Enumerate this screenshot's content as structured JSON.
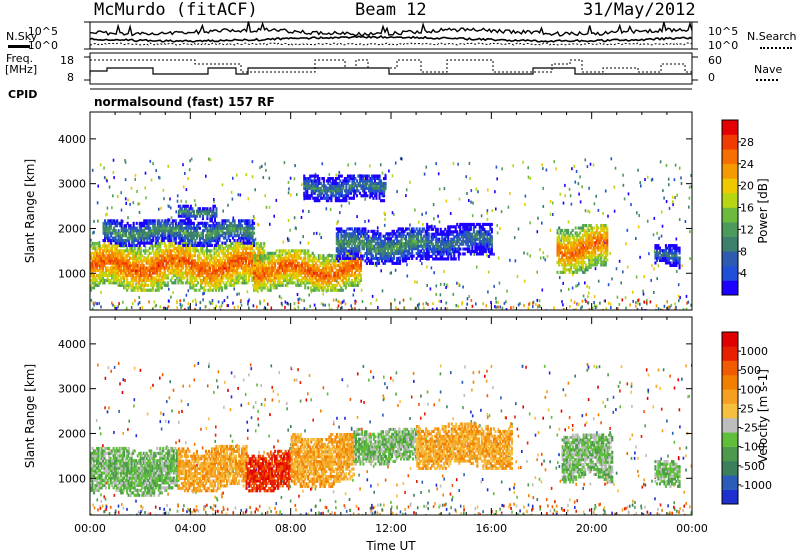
{
  "header": {
    "station": "McMurdo (fitACF)",
    "beam": "Beam 12",
    "date": "31/May/2012"
  },
  "status_panel": {
    "left_label_1": "N.Sky",
    "left_label_2": "Freq.",
    "left_label_3": "[MHz]",
    "left_label_4": "CPID",
    "nsky_ticks": [
      "10^5",
      "10^0"
    ],
    "freq_ticks": [
      "18",
      "8"
    ],
    "right_label_1": "N.Search",
    "right_label_2": "Nave",
    "nsearch_ticks": [
      "10^5",
      "10^0"
    ],
    "nave_ticks": [
      "60",
      "0"
    ],
    "cpid_text": "normalsound (fast) 157 RF"
  },
  "chart_data": [
    {
      "type": "heatmap",
      "ylabel": "Slant Range [km]",
      "ylim": [
        180,
        4600
      ],
      "yticks": [
        "1000",
        "2000",
        "3000",
        "4000"
      ],
      "xlim": [
        "00:00",
        "24:00"
      ],
      "colorbar": {
        "label": "Power [dB]",
        "ticks": [
          "28",
          "24",
          "20",
          "16",
          "12",
          "8",
          "4"
        ],
        "colors": [
          "#1d00ff",
          "#2050d8",
          "#2d5bb0",
          "#3b7f6c",
          "#4c9a5c",
          "#6cbb3e",
          "#b6d614",
          "#eec800",
          "#f59a00",
          "#f57000",
          "#f03c00",
          "#e40000"
        ],
        "range": [
          0,
          32
        ]
      },
      "regions": [
        {
          "t0": 0.0,
          "t1": 6.9,
          "r0": 600,
          "r1": 1700,
          "value": 27
        },
        {
          "t0": 0.5,
          "t1": 6.5,
          "r0": 1600,
          "r1": 2200,
          "value": 12
        },
        {
          "t0": 6.5,
          "t1": 10.8,
          "r0": 600,
          "r1": 1500,
          "value": 27
        },
        {
          "t0": 9.8,
          "t1": 13.5,
          "r0": 1200,
          "r1": 2000,
          "value": 12
        },
        {
          "t0": 13.4,
          "t1": 16.0,
          "r0": 1300,
          "r1": 2100,
          "value": 9
        },
        {
          "t0": 18.6,
          "t1": 20.6,
          "r0": 1000,
          "r1": 2100,
          "value": 26
        },
        {
          "t0": 22.5,
          "t1": 23.5,
          "r0": 1100,
          "r1": 1600,
          "value": 9
        },
        {
          "t0": 3.5,
          "t1": 5.0,
          "r0": 2200,
          "r1": 2500,
          "value": 12
        },
        {
          "t0": 8.5,
          "t1": 11.8,
          "r0": 2600,
          "r1": 3200,
          "value": 10
        }
      ]
    },
    {
      "type": "heatmap",
      "ylabel": "Slant Range [km]",
      "xlabel": "Time UT",
      "ylim": [
        180,
        4600
      ],
      "yticks": [
        "1000",
        "2000",
        "3000",
        "4000"
      ],
      "xlim": [
        "00:00",
        "24:00"
      ],
      "xticks": [
        "00:00",
        "04:00",
        "08:00",
        "12:00",
        "16:00",
        "20:00",
        "00:00"
      ],
      "colorbar": {
        "label": "Velocity [m s-1]",
        "ticks": [
          "1000",
          "500",
          "100",
          "25",
          "-25",
          "-100",
          "-500",
          "-1000"
        ],
        "colors": [
          "#1d2fd0",
          "#2a5db8",
          "#3b7f5c",
          "#4d9a4c",
          "#5fbf3a",
          "#bdbdbd",
          "#f5c040",
          "#f5a020",
          "#f28000",
          "#f05a00",
          "#e82000",
          "#e00000"
        ],
        "range": [
          -1250,
          1250
        ]
      },
      "regions": [
        {
          "t0": 0.0,
          "t1": 3.5,
          "r0": 600,
          "r1": 1700,
          "value": -300
        },
        {
          "t0": 3.5,
          "t1": 6.2,
          "r0": 700,
          "r1": 1700,
          "value": 300
        },
        {
          "t0": 6.2,
          "t1": 8.0,
          "r0": 700,
          "r1": 1600,
          "value": 900
        },
        {
          "t0": 8.0,
          "t1": 10.5,
          "r0": 800,
          "r1": 2000,
          "value": 300
        },
        {
          "t0": 10.5,
          "t1": 13.0,
          "r0": 1300,
          "r1": 2100,
          "value": -300
        },
        {
          "t0": 13.0,
          "t1": 16.8,
          "r0": 1200,
          "r1": 2200,
          "value": 300
        },
        {
          "t0": 18.8,
          "t1": 20.8,
          "r0": 900,
          "r1": 2000,
          "value": -300
        },
        {
          "t0": 22.5,
          "t1": 23.5,
          "r0": 800,
          "r1": 1400,
          "value": -300
        }
      ]
    }
  ]
}
